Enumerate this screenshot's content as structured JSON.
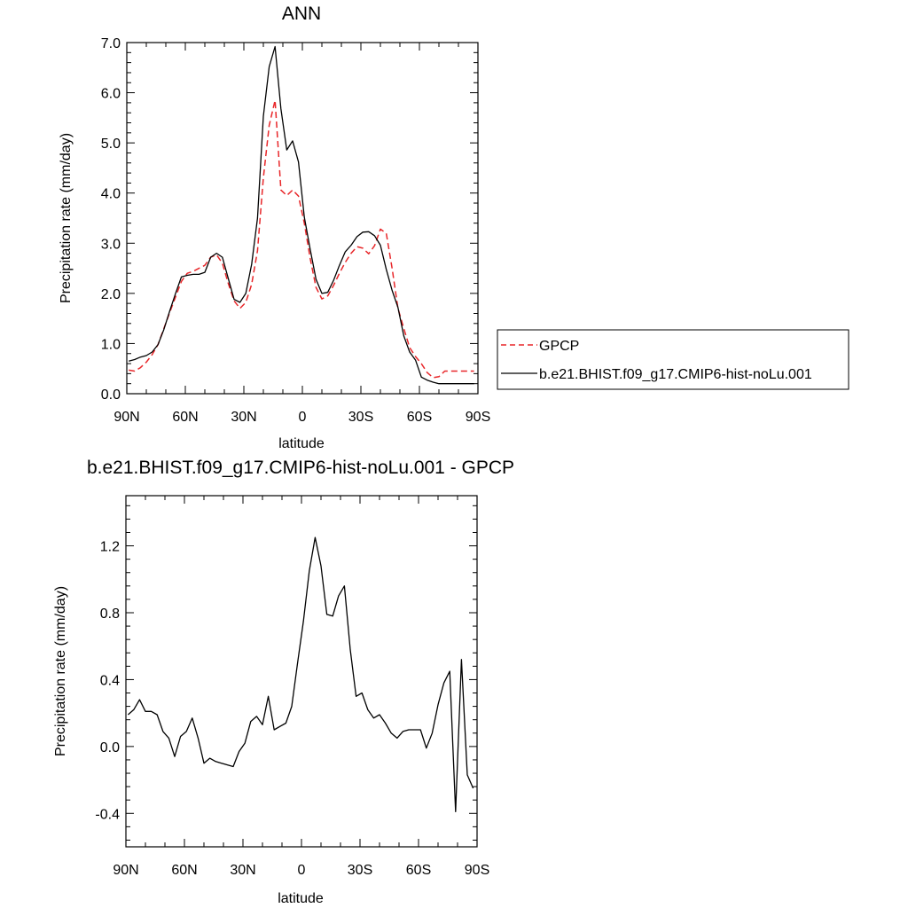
{
  "chart_data": [
    {
      "type": "line",
      "title": "ANN",
      "xlabel": "latitude",
      "ylabel": "Precipitation rate (mm/day)",
      "xlim": [
        90,
        -90
      ],
      "ylim": [
        0,
        7
      ],
      "x_ticks": [
        90,
        60,
        30,
        0,
        -30,
        -60,
        -90
      ],
      "x_tick_labels": [
        "90N",
        "60N",
        "30N",
        "0",
        "30S",
        "60S",
        "90S"
      ],
      "y_ticks": [
        0,
        1,
        2,
        3,
        4,
        5,
        6,
        7
      ],
      "y_tick_labels": [
        "0.0",
        "1.0",
        "2.0",
        "3.0",
        "4.0",
        "5.0",
        "6.0",
        "7.0"
      ],
      "grid": false,
      "legend_position": "right",
      "x": [
        89,
        86,
        83,
        80,
        77,
        74,
        71,
        68,
        65,
        62,
        59,
        56,
        53,
        50,
        47,
        44,
        41,
        38,
        35,
        32,
        29,
        26,
        23,
        20,
        17,
        14,
        11,
        8,
        5,
        2,
        -1,
        -4,
        -7,
        -10,
        -13,
        -16,
        -19,
        -22,
        -25,
        -28,
        -31,
        -34,
        -37,
        -40,
        -43,
        -46,
        -49,
        -52,
        -55,
        -58,
        -61,
        -64,
        -67,
        -70,
        -73,
        -76,
        -79,
        -82,
        -85,
        -88
      ],
      "series": [
        {
          "name": "GPCP",
          "color": "#e8272a",
          "dash": "dashed",
          "values": [
            0.47,
            0.45,
            0.52,
            0.63,
            0.78,
            0.98,
            1.3,
            1.62,
            1.93,
            2.24,
            2.4,
            2.44,
            2.5,
            2.56,
            2.72,
            2.77,
            2.6,
            2.2,
            1.85,
            1.7,
            1.82,
            2.18,
            2.85,
            4.3,
            5.35,
            5.85,
            4.06,
            3.95,
            4.06,
            3.94,
            3.4,
            2.7,
            2.12,
            1.89,
            1.95,
            2.16,
            2.4,
            2.62,
            2.8,
            2.93,
            2.9,
            2.79,
            2.95,
            3.28,
            3.2,
            2.5,
            1.7,
            1.3,
            0.92,
            0.74,
            0.6,
            0.42,
            0.32,
            0.34,
            0.45,
            0.45,
            0.45,
            0.45,
            0.45,
            0.45
          ]
        },
        {
          "name": "b.e21.BHIST.f09_g17.CMIP6-hist-noLu.001",
          "color": "#000000",
          "dash": "solid",
          "values": [
            0.65,
            0.68,
            0.73,
            0.76,
            0.83,
            0.98,
            1.28,
            1.65,
            2.0,
            2.33,
            2.36,
            2.38,
            2.38,
            2.42,
            2.72,
            2.8,
            2.72,
            2.3,
            1.88,
            1.82,
            2.0,
            2.58,
            3.5,
            5.53,
            6.52,
            6.92,
            5.68,
            4.86,
            5.04,
            4.62,
            3.52,
            2.88,
            2.28,
            2.0,
            2.02,
            2.26,
            2.56,
            2.83,
            2.96,
            3.13,
            3.22,
            3.23,
            3.15,
            2.96,
            2.48,
            2.06,
            1.72,
            1.15,
            0.83,
            0.67,
            0.33,
            0.27,
            0.23,
            0.2,
            0.2,
            0.2,
            0.2,
            0.2,
            0.2,
            0.2
          ]
        }
      ]
    },
    {
      "type": "line",
      "title": "b.e21.BHIST.f09_g17.CMIP6-hist-noLu.001 - GPCP",
      "xlabel": "latitude",
      "ylabel": "Precipitation rate (mm/day)",
      "xlim": [
        90,
        -90
      ],
      "ylim": [
        -0.6,
        1.5
      ],
      "x_ticks": [
        90,
        60,
        30,
        0,
        -30,
        -60,
        -90
      ],
      "x_tick_labels": [
        "90N",
        "60N",
        "30N",
        "0",
        "30S",
        "60S",
        "90S"
      ],
      "y_ticks": [
        -0.4,
        0,
        0.4,
        0.8,
        1.2
      ],
      "y_tick_labels": [
        "-0.4",
        "0.0",
        "0.4",
        "0.8",
        "1.2"
      ],
      "grid": false,
      "x": [
        88.9,
        86,
        83,
        80,
        77,
        74,
        71,
        68,
        65,
        62,
        59,
        56,
        53,
        50,
        47,
        44,
        41,
        38,
        35,
        32,
        29,
        26,
        23,
        20,
        17,
        14,
        11,
        8,
        5,
        2,
        -1,
        -4,
        -7,
        -10,
        -13,
        -16,
        -19,
        -22,
        -25,
        -28,
        -31,
        -34,
        -37,
        -40,
        -43,
        -46,
        -49,
        -52,
        -55,
        -58,
        -61,
        -64,
        -67,
        -70,
        -73,
        -76,
        -79,
        -82,
        -85,
        -88
      ],
      "series": [
        {
          "color": "#000000",
          "values": [
            0.19,
            0.22,
            0.28,
            0.21,
            0.21,
            0.19,
            0.09,
            0.05,
            -0.06,
            0.06,
            0.09,
            0.17,
            0.05,
            -0.1,
            -0.07,
            -0.09,
            -0.1,
            -0.11,
            -0.12,
            -0.03,
            0.02,
            0.15,
            0.18,
            0.13,
            0.3,
            0.1,
            0.12,
            0.14,
            0.24,
            0.5,
            0.75,
            1.05,
            1.25,
            1.08,
            0.79,
            0.78,
            0.9,
            0.96,
            0.58,
            0.3,
            0.32,
            0.22,
            0.17,
            0.19,
            0.14,
            0.08,
            0.05,
            0.09,
            0.1,
            0.1,
            0.1,
            -0.01,
            0.08,
            0.25,
            0.38,
            0.45,
            -0.39,
            0.52,
            -0.17,
            -0.25
          ]
        }
      ]
    }
  ],
  "legend": {
    "items": [
      {
        "label": "GPCP",
        "color": "#e8272a",
        "dash": "dashed"
      },
      {
        "label": "b.e21.BHIST.f09_g17.CMIP6-hist-noLu.001",
        "color": "#000000",
        "dash": "solid"
      }
    ]
  }
}
